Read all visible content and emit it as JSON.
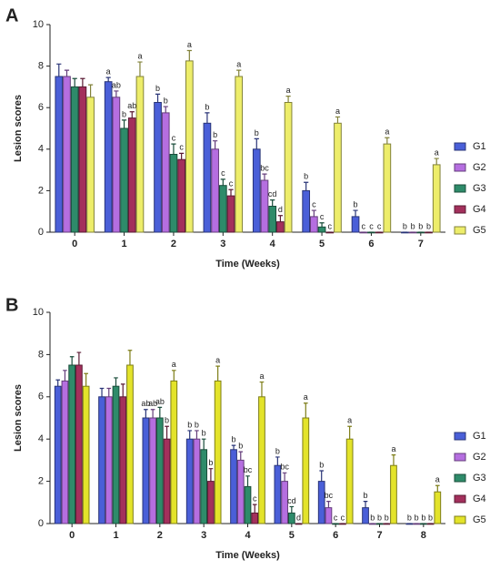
{
  "chart_data": [
    {
      "type": "bar",
      "panel": "A",
      "xlabel": "Time (Weeks)",
      "ylabel": "Lesion scores",
      "categories": [
        "0",
        "1",
        "2",
        "3",
        "4",
        "5",
        "6",
        "7"
      ],
      "ylim": [
        0,
        10
      ],
      "yticks": [
        0,
        2,
        4,
        6,
        8,
        10
      ],
      "legend": "right",
      "series": [
        {
          "name": "G1",
          "color": "#4a5fd8",
          "values": [
            7.5,
            7.25,
            6.25,
            5.25,
            4.0,
            2.0,
            0.75,
            0
          ],
          "errors": [
            0.6,
            0.2,
            0.4,
            0.5,
            0.5,
            0.4,
            0.3,
            0
          ],
          "letters": [
            null,
            "a",
            "b",
            "b",
            "b",
            "b",
            "b",
            "b"
          ]
        },
        {
          "name": "G2",
          "color": "#b56ee0",
          "values": [
            7.5,
            6.5,
            5.75,
            4.0,
            2.5,
            0.75,
            0,
            0
          ],
          "errors": [
            0.3,
            0.3,
            0.3,
            0.4,
            0.3,
            0.3,
            0,
            0
          ],
          "letters": [
            null,
            "ab",
            "b",
            "b",
            "bc",
            "c",
            "c",
            "b"
          ]
        },
        {
          "name": "G3",
          "color": "#2e8b6a",
          "values": [
            7.0,
            5.0,
            3.75,
            2.25,
            1.25,
            0.25,
            0,
            0
          ],
          "errors": [
            0.4,
            0.4,
            0.5,
            0.3,
            0.3,
            0.2,
            0,
            0
          ],
          "letters": [
            null,
            "b",
            "c",
            "c",
            "cd",
            "c",
            "c",
            "b"
          ]
        },
        {
          "name": "G4",
          "color": "#a3305c",
          "values": [
            7.0,
            5.5,
            3.5,
            1.75,
            0.5,
            0,
            0,
            0
          ],
          "errors": [
            0.4,
            0.3,
            0.3,
            0.3,
            0.3,
            0,
            0,
            0
          ],
          "letters": [
            null,
            "ab",
            "c",
            "c",
            "d",
            "c",
            "c",
            "b"
          ]
        },
        {
          "name": "G5",
          "color": "#eded6a",
          "values": [
            6.5,
            7.5,
            8.25,
            7.5,
            6.25,
            5.25,
            4.25,
            3.25
          ],
          "errors": [
            0.6,
            0.7,
            0.5,
            0.3,
            0.3,
            0.3,
            0.3,
            0.3
          ],
          "letters": [
            null,
            "a",
            "a",
            "a",
            "a",
            "a",
            "a",
            "a"
          ]
        }
      ]
    },
    {
      "type": "bar",
      "panel": "B",
      "xlabel": "Time (Weeks)",
      "ylabel": "Lesion scores",
      "categories": [
        "0",
        "1",
        "2",
        "3",
        "4",
        "5",
        "6",
        "7",
        "8"
      ],
      "ylim": [
        0,
        10
      ],
      "yticks": [
        0,
        2,
        4,
        6,
        8,
        10
      ],
      "legend": "right",
      "series": [
        {
          "name": "G1",
          "color": "#4a5fd8",
          "values": [
            6.5,
            6.0,
            5.0,
            4.0,
            3.5,
            2.75,
            2.0,
            0.75,
            0
          ],
          "errors": [
            0.3,
            0.4,
            0.4,
            0.4,
            0.2,
            0.4,
            0.5,
            0.3,
            0
          ],
          "letters": [
            null,
            null,
            "ab",
            "b",
            "b",
            "b",
            "b",
            "b",
            "b"
          ]
        },
        {
          "name": "G2",
          "color": "#b56ee0",
          "values": [
            6.75,
            6.0,
            5.0,
            4.0,
            3.0,
            2.0,
            0.75,
            0,
            0
          ],
          "errors": [
            0.5,
            0.4,
            0.4,
            0.4,
            0.4,
            0.4,
            0.3,
            0,
            0
          ],
          "letters": [
            null,
            null,
            "ab",
            "b",
            "b",
            "bc",
            "bc",
            "b",
            "b"
          ]
        },
        {
          "name": "G3",
          "color": "#2e8b6a",
          "values": [
            7.5,
            6.5,
            5.0,
            3.5,
            1.75,
            0.5,
            0,
            0,
            0
          ],
          "errors": [
            0.4,
            0.4,
            0.5,
            0.5,
            0.5,
            0.3,
            0,
            0,
            0
          ],
          "letters": [
            null,
            null,
            "ab",
            "b",
            "bc",
            "cd",
            "c",
            "b",
            "b"
          ]
        },
        {
          "name": "G4",
          "color": "#a3305c",
          "values": [
            7.5,
            6.0,
            4.0,
            2.0,
            0.5,
            0,
            0,
            0,
            0
          ],
          "errors": [
            0.6,
            0.6,
            0.6,
            0.6,
            0.4,
            0,
            0,
            0,
            0
          ],
          "letters": [
            null,
            null,
            "b",
            "b",
            "c",
            "d",
            "c",
            "b",
            "b"
          ]
        },
        {
          "name": "G5",
          "color": "#e3e32a",
          "values": [
            6.5,
            7.5,
            6.75,
            6.75,
            6.0,
            5.0,
            4.0,
            2.75,
            1.5
          ],
          "errors": [
            0.6,
            0.7,
            0.5,
            0.7,
            0.7,
            0.7,
            0.6,
            0.5,
            0.3
          ],
          "letters": [
            null,
            null,
            "a",
            "a",
            "a",
            "a",
            "a",
            "a",
            "a"
          ]
        }
      ]
    }
  ]
}
